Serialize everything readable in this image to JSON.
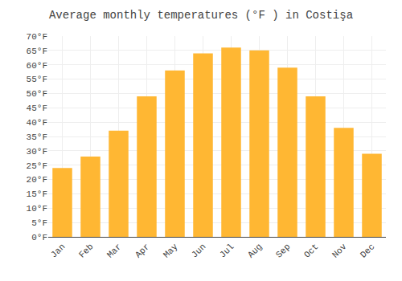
{
  "chart_data": {
    "type": "bar",
    "title": "Average monthly temperatures (°F ) in Costişa",
    "categories": [
      "Jan",
      "Feb",
      "Mar",
      "Apr",
      "May",
      "Jun",
      "Jul",
      "Aug",
      "Sep",
      "Oct",
      "Nov",
      "Dec"
    ],
    "values": [
      24,
      28,
      37,
      49,
      58,
      64,
      66,
      65,
      59,
      49,
      38,
      29
    ],
    "color": "#FFB733",
    "ylim": [
      0,
      70
    ],
    "yticks": [
      {
        "value": 0,
        "label": "0°F"
      },
      {
        "value": 5,
        "label": "5°F"
      },
      {
        "value": 10,
        "label": "10°F"
      },
      {
        "value": 15,
        "label": "15°F"
      },
      {
        "value": 20,
        "label": "20°F"
      },
      {
        "value": 25,
        "label": "25°F"
      },
      {
        "value": 30,
        "label": "30°F"
      },
      {
        "value": 35,
        "label": "35°F"
      },
      {
        "value": 40,
        "label": "40°F"
      },
      {
        "value": 45,
        "label": "45°F"
      },
      {
        "value": 50,
        "label": "50°F"
      },
      {
        "value": 55,
        "label": "55°F"
      },
      {
        "value": 60,
        "label": "60°F"
      },
      {
        "value": 65,
        "label": "65°F"
      },
      {
        "value": 70,
        "label": "70°F"
      }
    ],
    "grid": true
  }
}
